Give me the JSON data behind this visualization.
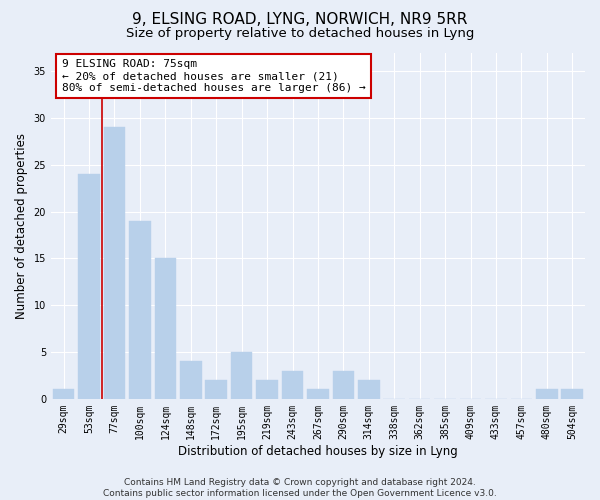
{
  "title": "9, ELSING ROAD, LYNG, NORWICH, NR9 5RR",
  "subtitle": "Size of property relative to detached houses in Lyng",
  "xlabel": "Distribution of detached houses by size in Lyng",
  "ylabel": "Number of detached properties",
  "categories": [
    "29sqm",
    "53sqm",
    "77sqm",
    "100sqm",
    "124sqm",
    "148sqm",
    "172sqm",
    "195sqm",
    "219sqm",
    "243sqm",
    "267sqm",
    "290sqm",
    "314sqm",
    "338sqm",
    "362sqm",
    "385sqm",
    "409sqm",
    "433sqm",
    "457sqm",
    "480sqm",
    "504sqm"
  ],
  "values": [
    1,
    24,
    29,
    19,
    15,
    4,
    2,
    5,
    2,
    3,
    1,
    3,
    2,
    0,
    0,
    0,
    0,
    0,
    0,
    1,
    1
  ],
  "bar_color": "#b8d0ea",
  "bar_edgecolor": "#b8d0ea",
  "vline_x": 1.5,
  "vline_color": "#cc0000",
  "annotation_text": "9 ELSING ROAD: 75sqm\n← 20% of detached houses are smaller (21)\n80% of semi-detached houses are larger (86) →",
  "annotation_box_facecolor": "#ffffff",
  "annotation_box_edgecolor": "#cc0000",
  "ylim": [
    0,
    37
  ],
  "yticks": [
    0,
    5,
    10,
    15,
    20,
    25,
    30,
    35
  ],
  "footer": "Contains HM Land Registry data © Crown copyright and database right 2024.\nContains public sector information licensed under the Open Government Licence v3.0.",
  "background_color": "#e8eef8",
  "grid_color": "#ffffff",
  "title_fontsize": 11,
  "subtitle_fontsize": 9.5,
  "tick_fontsize": 7,
  "ylabel_fontsize": 8.5,
  "xlabel_fontsize": 8.5,
  "annotation_fontsize": 8,
  "footer_fontsize": 6.5
}
